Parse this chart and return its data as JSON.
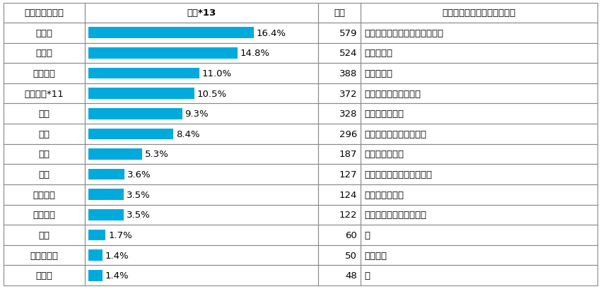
{
  "rows": [
    {
      "label": "雨漏り",
      "pct": 16.4,
      "count": 579,
      "location": "屋根、外壁、バルコニー・庇等"
    },
    {
      "label": "はがれ",
      "pct": 14.8,
      "count": 524,
      "location": "外壁、屋根"
    },
    {
      "label": "ひび割れ",
      "pct": 11.0,
      "count": 388,
      "location": "外壁、屋根"
    },
    {
      "label": "性能不足*11",
      "pct": 10.5,
      "count": 372,
      "location": "外壁、屋根、設備機器"
    },
    {
      "label": "汚れ",
      "pct": 9.3,
      "count": 328,
      "location": "外壁、屋根、床"
    },
    {
      "label": "変形",
      "pct": 8.4,
      "count": 296,
      "location": "床、内装、開口部・建具"
    },
    {
      "label": "きず",
      "pct": 5.3,
      "count": 187,
      "location": "床、外壁、内装"
    },
    {
      "label": "漏水",
      "pct": 3.6,
      "count": 127,
      "location": "給水・給湯配管、設備機器"
    },
    {
      "label": "排水不良",
      "pct": 3.5,
      "count": 124,
      "location": "排水配管、屋根"
    },
    {
      "label": "作動不良",
      "pct": 3.5,
      "count": 122,
      "location": "開口部・建具、設備機器"
    },
    {
      "label": "傾斜",
      "pct": 1.7,
      "count": 60,
      "location": "床"
    },
    {
      "label": "腐食・腐朽",
      "pct": 1.4,
      "count": 50,
      "location": "屋根、床"
    },
    {
      "label": "床鳴り",
      "pct": 1.4,
      "count": 48,
      "location": "床"
    }
  ],
  "bar_color": "#00aadd",
  "max_pct": 20.0,
  "col1_header": "主な不具合事象",
  "col2_header": "割合*13",
  "col3_header": "件数",
  "col4_header": "当該事象が多くみられる部位",
  "header_bg": "#d0e8f0",
  "border_color": "#888888",
  "text_color": "#000000",
  "font_size": 9.5,
  "header_font_size": 9.5
}
